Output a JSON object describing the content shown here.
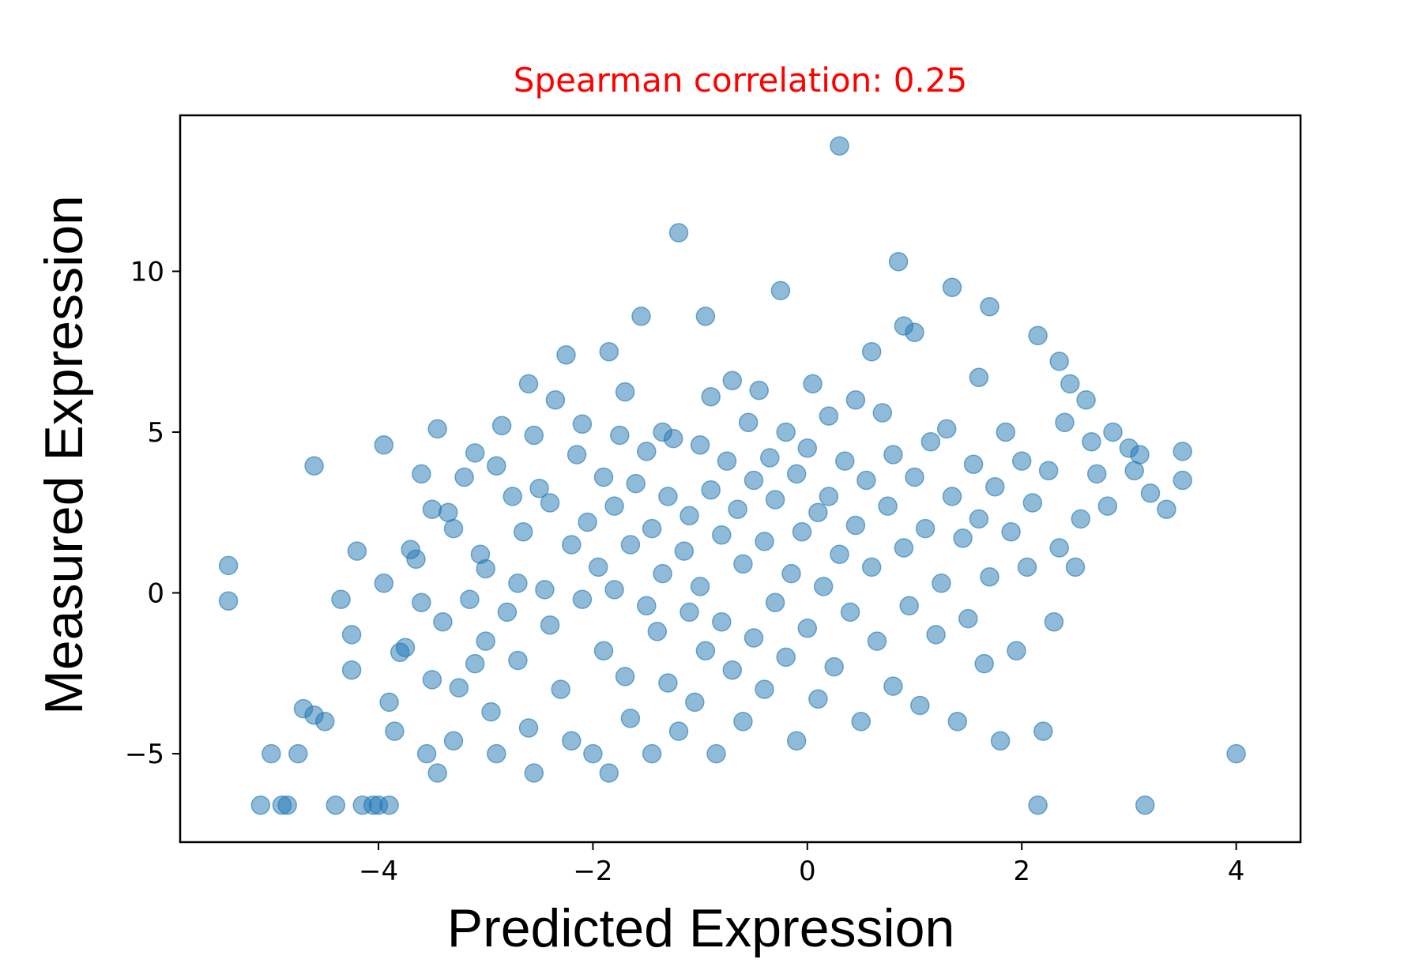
{
  "chart_data": {
    "type": "scatter",
    "title": "Spearman correlation: 0.25",
    "title_color": "#ff0000",
    "xlabel": "Predicted Expression",
    "ylabel": "Measured Expression",
    "xlim": [
      -5.85,
      4.6
    ],
    "ylim": [
      -7.75,
      14.85
    ],
    "xticks": [
      -4,
      -2,
      0,
      2,
      4
    ],
    "xtick_labels": [
      "−4",
      "−2",
      "0",
      "2",
      "4"
    ],
    "yticks": [
      -5,
      0,
      5,
      10
    ],
    "ytick_labels": [
      "−5",
      "0",
      "5",
      "10"
    ],
    "grid": false,
    "legend": "none",
    "marker_color": "#1f77b4",
    "marker_alpha": 0.5,
    "series": [
      {
        "values": [
          [
            -5.4,
            0.85
          ],
          [
            -5.4,
            -0.25
          ],
          [
            -5.1,
            -6.6
          ],
          [
            -5.0,
            -5.0
          ],
          [
            -4.9,
            -6.6
          ],
          [
            -4.85,
            -6.6
          ],
          [
            -4.75,
            -5.0
          ],
          [
            -4.7,
            -3.6
          ],
          [
            -4.6,
            -3.8
          ],
          [
            -4.6,
            3.95
          ],
          [
            -4.5,
            -4.0
          ],
          [
            -4.4,
            -6.6
          ],
          [
            -4.35,
            -0.2
          ],
          [
            -4.25,
            -2.4
          ],
          [
            -4.25,
            -1.3
          ],
          [
            -4.2,
            1.3
          ],
          [
            -4.15,
            -6.6
          ],
          [
            -4.05,
            -6.6
          ],
          [
            -4.0,
            -6.6
          ],
          [
            -3.95,
            4.6
          ],
          [
            -3.95,
            0.3
          ],
          [
            -3.9,
            -3.4
          ],
          [
            -3.9,
            -6.6
          ],
          [
            -3.85,
            -4.3
          ],
          [
            -3.8,
            -1.85
          ],
          [
            -3.75,
            -1.7
          ],
          [
            -3.7,
            1.35
          ],
          [
            -3.65,
            1.05
          ],
          [
            -3.6,
            -0.3
          ],
          [
            -3.6,
            3.7
          ],
          [
            -3.55,
            -5.0
          ],
          [
            -3.5,
            2.6
          ],
          [
            -3.5,
            -2.7
          ],
          [
            -3.45,
            -5.6
          ],
          [
            -3.45,
            5.1
          ],
          [
            -3.4,
            -0.9
          ],
          [
            -3.35,
            2.5
          ],
          [
            -3.3,
            2.0
          ],
          [
            -3.3,
            -4.6
          ],
          [
            -3.25,
            -2.95
          ],
          [
            -3.2,
            3.6
          ],
          [
            -3.15,
            -0.2
          ],
          [
            -3.1,
            -2.2
          ],
          [
            -3.1,
            4.35
          ],
          [
            -3.05,
            1.2
          ],
          [
            -3.0,
            0.75
          ],
          [
            -3.0,
            -1.5
          ],
          [
            -2.95,
            -3.7
          ],
          [
            -2.9,
            3.95
          ],
          [
            -2.9,
            -5.0
          ],
          [
            -2.85,
            5.2
          ],
          [
            -2.8,
            -0.6
          ],
          [
            -2.75,
            3.0
          ],
          [
            -2.7,
            0.3
          ],
          [
            -2.7,
            -2.1
          ],
          [
            -2.65,
            1.9
          ],
          [
            -2.6,
            -4.2
          ],
          [
            -2.6,
            6.5
          ],
          [
            -2.55,
            4.9
          ],
          [
            -2.55,
            -5.6
          ],
          [
            -2.5,
            3.25
          ],
          [
            -2.45,
            0.1
          ],
          [
            -2.4,
            -1.0
          ],
          [
            -2.4,
            2.8
          ],
          [
            -2.35,
            6.0
          ],
          [
            -2.3,
            -3.0
          ],
          [
            -2.25,
            7.4
          ],
          [
            -2.2,
            1.5
          ],
          [
            -2.2,
            -4.6
          ],
          [
            -2.15,
            4.3
          ],
          [
            -2.1,
            5.25
          ],
          [
            -2.1,
            -0.2
          ],
          [
            -2.05,
            2.2
          ],
          [
            -2.0,
            -5.0
          ],
          [
            -1.95,
            0.8
          ],
          [
            -1.9,
            3.6
          ],
          [
            -1.9,
            -1.8
          ],
          [
            -1.85,
            7.5
          ],
          [
            -1.85,
            -5.6
          ],
          [
            -1.8,
            2.7
          ],
          [
            -1.8,
            0.1
          ],
          [
            -1.75,
            4.9
          ],
          [
            -1.7,
            -2.6
          ],
          [
            -1.7,
            6.25
          ],
          [
            -1.65,
            1.5
          ],
          [
            -1.65,
            -3.9
          ],
          [
            -1.6,
            3.4
          ],
          [
            -1.55,
            8.6
          ],
          [
            -1.5,
            -0.4
          ],
          [
            -1.5,
            4.4
          ],
          [
            -1.45,
            2.0
          ],
          [
            -1.45,
            -5.0
          ],
          [
            -1.4,
            -1.2
          ],
          [
            -1.35,
            5.0
          ],
          [
            -1.35,
            0.6
          ],
          [
            -1.3,
            -2.8
          ],
          [
            -1.3,
            3.0
          ],
          [
            -1.25,
            4.8
          ],
          [
            -1.2,
            11.2
          ],
          [
            -1.2,
            -4.3
          ],
          [
            -1.15,
            1.3
          ],
          [
            -1.1,
            -0.6
          ],
          [
            -1.1,
            2.4
          ],
          [
            -1.05,
            -3.4
          ],
          [
            -1.0,
            4.6
          ],
          [
            -1.0,
            0.2
          ],
          [
            -0.95,
            8.6
          ],
          [
            -0.95,
            -1.8
          ],
          [
            -0.9,
            3.2
          ],
          [
            -0.9,
            6.1
          ],
          [
            -0.85,
            -5.0
          ],
          [
            -0.8,
            1.8
          ],
          [
            -0.8,
            -0.9
          ],
          [
            -0.75,
            4.1
          ],
          [
            -0.7,
            6.6
          ],
          [
            -0.7,
            -2.4
          ],
          [
            -0.65,
            2.6
          ],
          [
            -0.6,
            -4.0
          ],
          [
            -0.6,
            0.9
          ],
          [
            -0.55,
            5.3
          ],
          [
            -0.5,
            -1.4
          ],
          [
            -0.5,
            3.5
          ],
          [
            -0.45,
            6.3
          ],
          [
            -0.4,
            -3.0
          ],
          [
            -0.4,
            1.6
          ],
          [
            -0.35,
            4.2
          ],
          [
            -0.3,
            -0.3
          ],
          [
            -0.3,
            2.9
          ],
          [
            -0.25,
            9.4
          ],
          [
            -0.2,
            -2.0
          ],
          [
            -0.2,
            5.0
          ],
          [
            -0.15,
            0.6
          ],
          [
            -0.1,
            3.7
          ],
          [
            -0.1,
            -4.6
          ],
          [
            -0.05,
            1.9
          ],
          [
            0.0,
            -1.1
          ],
          [
            0.0,
            4.5
          ],
          [
            0.05,
            6.5
          ],
          [
            0.1,
            2.5
          ],
          [
            0.1,
            -3.3
          ],
          [
            0.15,
            0.2
          ],
          [
            0.2,
            5.5
          ],
          [
            0.2,
            3.0
          ],
          [
            0.25,
            -2.3
          ],
          [
            0.3,
            1.2
          ],
          [
            0.3,
            13.9
          ],
          [
            0.35,
            4.1
          ],
          [
            0.4,
            -0.6
          ],
          [
            0.45,
            6.0
          ],
          [
            0.45,
            2.1
          ],
          [
            0.5,
            -4.0
          ],
          [
            0.55,
            3.5
          ],
          [
            0.6,
            0.8
          ],
          [
            0.6,
            7.5
          ],
          [
            0.65,
            -1.5
          ],
          [
            0.7,
            5.6
          ],
          [
            0.75,
            2.7
          ],
          [
            0.8,
            -2.9
          ],
          [
            0.8,
            4.3
          ],
          [
            0.85,
            10.3
          ],
          [
            0.9,
            1.4
          ],
          [
            0.9,
            8.3
          ],
          [
            0.95,
            -0.4
          ],
          [
            1.0,
            3.6
          ],
          [
            1.0,
            8.1
          ],
          [
            1.05,
            -3.5
          ],
          [
            1.1,
            2.0
          ],
          [
            1.15,
            4.7
          ],
          [
            1.2,
            -1.3
          ],
          [
            1.25,
            0.3
          ],
          [
            1.3,
            5.1
          ],
          [
            1.35,
            9.5
          ],
          [
            1.35,
            3.0
          ],
          [
            1.4,
            -4.0
          ],
          [
            1.45,
            1.7
          ],
          [
            1.5,
            -0.8
          ],
          [
            1.55,
            4.0
          ],
          [
            1.6,
            6.7
          ],
          [
            1.6,
            2.3
          ],
          [
            1.65,
            -2.2
          ],
          [
            1.7,
            8.9
          ],
          [
            1.7,
            0.5
          ],
          [
            1.75,
            3.3
          ],
          [
            1.8,
            -4.6
          ],
          [
            1.85,
            5.0
          ],
          [
            1.9,
            1.9
          ],
          [
            1.95,
            -1.8
          ],
          [
            2.0,
            4.1
          ],
          [
            2.05,
            0.8
          ],
          [
            2.1,
            2.8
          ],
          [
            2.15,
            8.0
          ],
          [
            2.15,
            -6.6
          ],
          [
            2.2,
            -4.3
          ],
          [
            2.25,
            3.8
          ],
          [
            2.3,
            -0.9
          ],
          [
            2.35,
            7.2
          ],
          [
            2.35,
            1.4
          ],
          [
            2.4,
            5.3
          ],
          [
            2.45,
            6.5
          ],
          [
            2.5,
            0.8
          ],
          [
            2.55,
            2.3
          ],
          [
            2.6,
            6.0
          ],
          [
            2.65,
            4.7
          ],
          [
            2.7,
            3.7
          ],
          [
            2.8,
            2.7
          ],
          [
            2.85,
            5.0
          ],
          [
            3.0,
            4.5
          ],
          [
            3.05,
            3.8
          ],
          [
            3.1,
            4.3
          ],
          [
            3.15,
            -6.6
          ],
          [
            3.2,
            3.1
          ],
          [
            3.35,
            2.6
          ],
          [
            3.5,
            4.4
          ],
          [
            3.5,
            3.5
          ],
          [
            4.0,
            -5.0
          ]
        ]
      }
    ]
  }
}
